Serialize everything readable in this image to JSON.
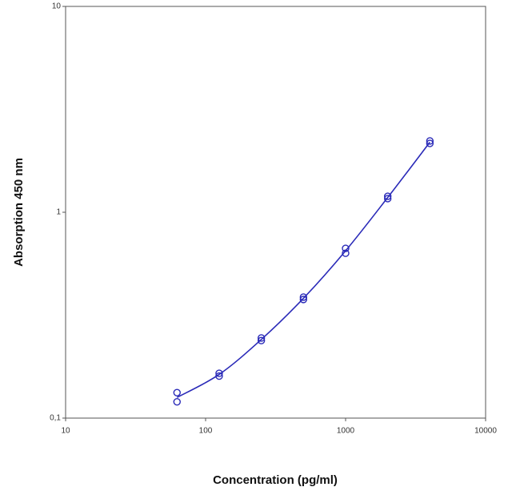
{
  "chart_data": {
    "type": "scatter",
    "xlabel": "Concentration (pg/ml)",
    "ylabel": "Absorption 450 nm",
    "xlog": true,
    "ylog": true,
    "xlim": [
      10,
      10000
    ],
    "ylim": [
      0.1,
      10
    ],
    "xticks": [
      10,
      100,
      1000,
      10000
    ],
    "yticks": [
      {
        "value": 0.1,
        "label": "0,1"
      },
      1,
      10
    ],
    "series": [
      {
        "color": "#2a2ab8",
        "mode": "markers",
        "x": [
          62.5,
          62.5,
          125,
          125,
          250,
          250,
          500,
          500,
          1000,
          1000,
          2000,
          2000,
          4000,
          4000
        ],
        "values": [
          0.133,
          0.12,
          0.165,
          0.16,
          0.245,
          0.238,
          0.387,
          0.377,
          0.668,
          0.632,
          1.196,
          1.165,
          2.22,
          2.16
        ]
      },
      {
        "color": "#2a2ab8",
        "mode": "line",
        "x": [
          62.5,
          125,
          250,
          500,
          1000,
          2000,
          4000
        ],
        "values": [
          0.126,
          0.163,
          0.241,
          0.382,
          0.65,
          1.18,
          2.19
        ]
      }
    ]
  }
}
